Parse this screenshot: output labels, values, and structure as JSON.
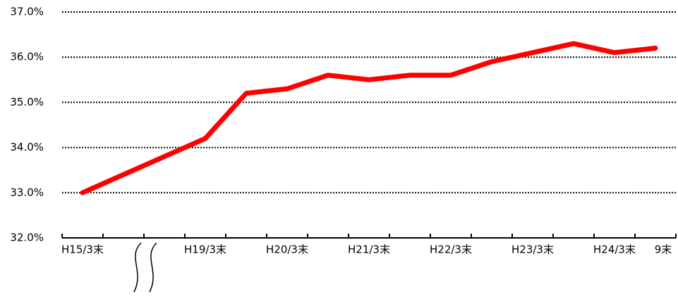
{
  "chart_data": {
    "type": "line",
    "categories": [
      "H15/3末",
      null,
      null,
      "H19/3末",
      null,
      "H20/3末",
      null,
      "H21/3末",
      null,
      "H22/3末",
      null,
      "H23/3末",
      null,
      "H24/3末",
      "9末"
    ],
    "series": [
      {
        "color": "#ff0000",
        "values": [
          33.0,
          33.4,
          33.8,
          34.2,
          35.2,
          35.3,
          35.6,
          35.5,
          35.6,
          35.6,
          35.9,
          36.1,
          36.3,
          36.1,
          36.2
        ]
      }
    ],
    "ylim": [
      32.0,
      37.0
    ],
    "yticks": [
      {
        "value": 32.0,
        "label": "32.0%"
      },
      {
        "value": 33.0,
        "label": "33.0%"
      },
      {
        "value": 34.0,
        "label": "34.0%"
      },
      {
        "value": 35.0,
        "label": "35.0%"
      },
      {
        "value": 36.0,
        "label": "36.0%"
      },
      {
        "value": 37.0,
        "label": "37.0%"
      }
    ],
    "grid": true
  }
}
